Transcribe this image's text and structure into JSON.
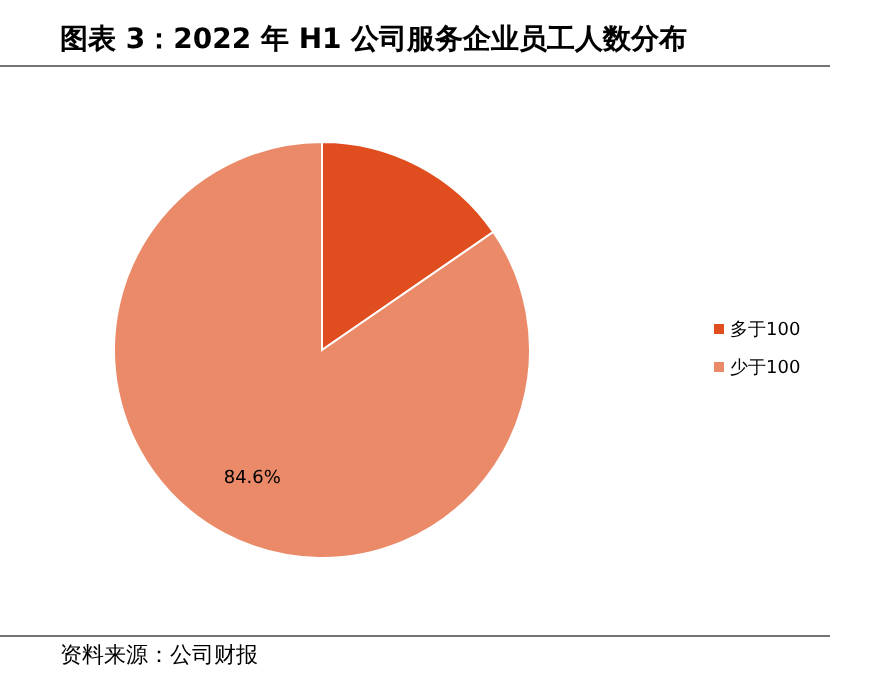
{
  "chart_data": {
    "type": "pie",
    "title": "图表 3：2022 年 H1 公司服务企业员工人数分布",
    "categories": [
      "多于100",
      "少于100"
    ],
    "values": [
      15.4,
      84.6
    ],
    "value_labels": [
      null,
      "84.6%"
    ],
    "colors": [
      "#e04e1f",
      "#ea8a68"
    ],
    "legend": "right",
    "annotations": [
      "资料来源：公司财报"
    ]
  }
}
